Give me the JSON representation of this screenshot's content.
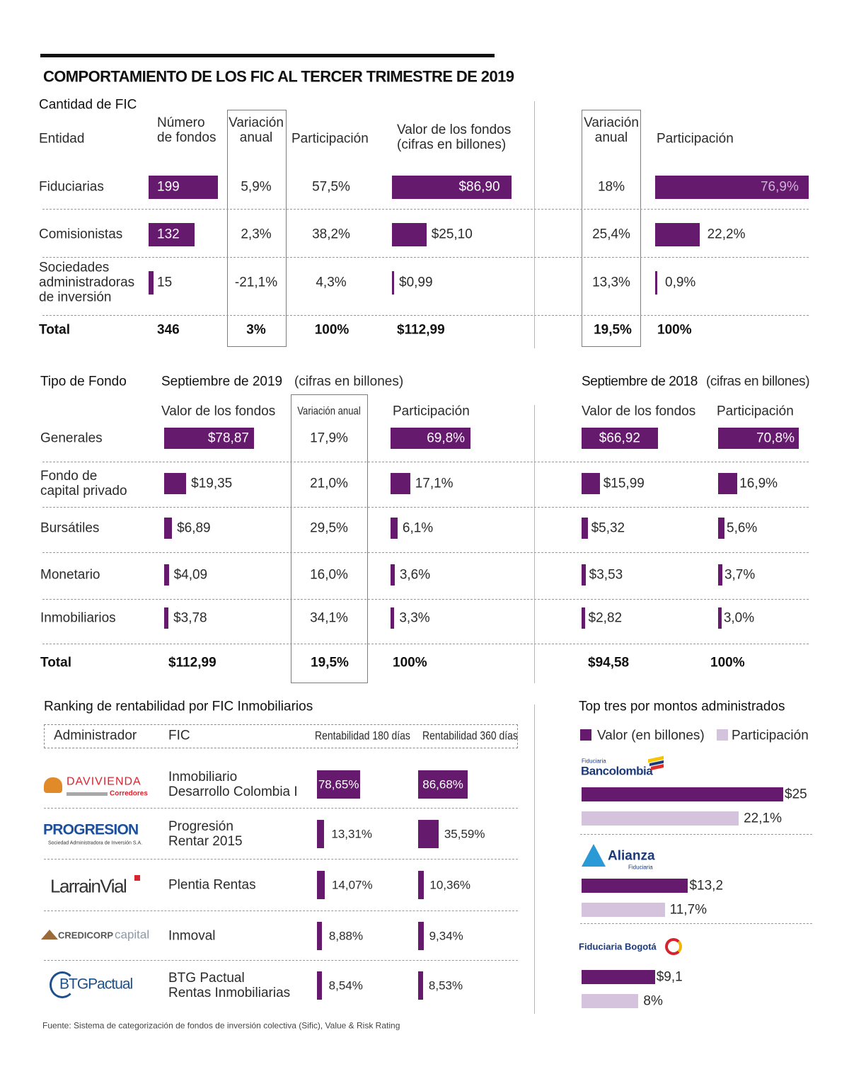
{
  "title": "COMPORTAMIENTO DE LOS FIC AL TERCER TRIMESTRE DE 2019",
  "colors": {
    "primary": "#661a6e",
    "light": "#d5c2dc",
    "text": "#2b2b2b"
  },
  "section1": {
    "subtitle": "Cantidad de FIC",
    "headers": {
      "entidad": "Entidad",
      "numero_fondos": "Número\nde fondos",
      "variacion": "Variación\nanual",
      "participacion": "Participación",
      "valor": "Valor de los fondos\n(cifras en billones)",
      "variacion_right": "Variación\nanual",
      "participacion_right": "Participación"
    },
    "rows": [
      {
        "entidad": "Fiduciarias",
        "num_fondos": 199,
        "num_fondos_label": "199",
        "variacion": "5,9%",
        "participacion": "57,5%",
        "valor": 86.9,
        "valor_label": "$86,90",
        "variacion_right": "18%",
        "participacion_right": 76.9,
        "participacion_right_label": "76,9%"
      },
      {
        "entidad": "Comisionistas",
        "num_fondos": 132,
        "num_fondos_label": "132",
        "variacion": "2,3%",
        "participacion": "38,2%",
        "valor": 25.1,
        "valor_label": "$25,10",
        "variacion_right": "25,4%",
        "participacion_right": 22.2,
        "participacion_right_label": "22,2%"
      },
      {
        "entidad": "Sociedades\nadministradoras\nde inversión",
        "num_fondos": 15,
        "num_fondos_label": "15",
        "variacion": "-21,1%",
        "participacion": "4,3%",
        "valor": 0.99,
        "valor_label": "$0,99",
        "variacion_right": "13,3%",
        "participacion_right": 0.9,
        "participacion_right_label": "0,9%"
      }
    ],
    "total": {
      "label": "Total",
      "num_fondos": "346",
      "variacion": "3%",
      "participacion": "100%",
      "valor": "$112,99",
      "variacion_right": "19,5%",
      "participacion_right": "100%"
    }
  },
  "section2": {
    "title": "Tipo de Fondo",
    "period_2019": "Septiembre de 2019",
    "unit_2019": "(cifras en billones)",
    "period_2018": "Septiembre de 2018",
    "unit_2018": "(cifras en billones)",
    "headers": {
      "valor_2019": "Valor de los fondos",
      "variacion": "Variación anual",
      "participacion_2019": "Participación",
      "valor_2018": "Valor de los fondos",
      "participacion_2018": "Participación"
    },
    "rows": [
      {
        "tipo": "Generales",
        "valor_2019": 78.87,
        "valor_2019_label": "$78,87",
        "variacion": "17,9%",
        "participacion_2019": 69.8,
        "participacion_2019_label": "69,8%",
        "valor_2018": 66.92,
        "valor_2018_label": "$66,92",
        "participacion_2018": 70.8,
        "participacion_2018_label": "70,8%"
      },
      {
        "tipo": "Fondo de\ncapital privado",
        "valor_2019": 19.35,
        "valor_2019_label": "$19,35",
        "variacion": "21,0%",
        "participacion_2019": 17.1,
        "participacion_2019_label": "17,1%",
        "valor_2018": 15.99,
        "valor_2018_label": "$15,99",
        "participacion_2018": 16.9,
        "participacion_2018_label": "16,9%"
      },
      {
        "tipo": "Bursátiles",
        "valor_2019": 6.89,
        "valor_2019_label": "$6,89",
        "variacion": "29,5%",
        "participacion_2019": 6.1,
        "participacion_2019_label": "6,1%",
        "valor_2018": 5.32,
        "valor_2018_label": "$5,32",
        "participacion_2018": 5.6,
        "participacion_2018_label": "5,6%"
      },
      {
        "tipo": "Monetario",
        "valor_2019": 4.09,
        "valor_2019_label": "$4,09",
        "variacion": "16,0%",
        "participacion_2019": 3.6,
        "participacion_2019_label": "3,6%",
        "valor_2018": 3.53,
        "valor_2018_label": "$3,53",
        "participacion_2018": 3.7,
        "participacion_2018_label": "3,7%"
      },
      {
        "tipo": "Inmobiliarios",
        "valor_2019": 3.78,
        "valor_2019_label": "$3,78",
        "variacion": "34,1%",
        "participacion_2019": 3.3,
        "participacion_2019_label": "3,3%",
        "valor_2018": 2.82,
        "valor_2018_label": "$2,82",
        "participacion_2018": 3.0,
        "participacion_2018_label": "3,0%"
      }
    ],
    "total": {
      "label": "Total",
      "valor_2019": "$112,99",
      "variacion": "19,5%",
      "participacion_2019": "100%",
      "valor_2018": "$94,58",
      "participacion_2018": "100%"
    }
  },
  "section3": {
    "title": "Ranking de rentabilidad por FIC Inmobiliarios",
    "headers": {
      "administrador": "Administrador",
      "fic": "FIC",
      "rent_180": "Rentabilidad 180 días",
      "rent_360": "Rentabilidad 360 días"
    },
    "rows": [
      {
        "logo": "davivienda-logo",
        "logo_text": "DAVIVIENDA",
        "logo_sub": "Corredores",
        "fic": "Inmobiliario\nDesarrollo Colombia I",
        "rent_180": 78.65,
        "rent_180_label": "78,65%",
        "rent_360": 86.68,
        "rent_360_label": "86,68%"
      },
      {
        "logo": "progresion-logo",
        "logo_text": "PROGRESION",
        "logo_sub": "Sociedad Administradora de Inversión S.A.",
        "fic": "Progresión\nRentar 2015",
        "rent_180": 13.31,
        "rent_180_label": "13,31%",
        "rent_360": 35.59,
        "rent_360_label": "35,59%"
      },
      {
        "logo": "larrainvial-logo",
        "logo_text": "LarrainVial",
        "logo_sub": "",
        "fic": "Plentia Rentas",
        "rent_180": 14.07,
        "rent_180_label": "14,07%",
        "rent_360": 10.36,
        "rent_360_label": "10,36%"
      },
      {
        "logo": "credicorp-logo",
        "logo_text": "CREDICORP",
        "logo_sub": "capital",
        "fic": "Inmoval",
        "rent_180": 8.88,
        "rent_180_label": "8,88%",
        "rent_360": 9.34,
        "rent_360_label": "9,34%"
      },
      {
        "logo": "btgpactual-logo",
        "logo_text": "BTGPactual",
        "logo_sub": "",
        "fic": "BTG Pactual\nRentas Inmobiliarias",
        "rent_180": 8.54,
        "rent_180_label": "8,54%",
        "rent_360": 8.53,
        "rent_360_label": "8,53%"
      }
    ],
    "source": "Fuente: Sistema de categorización de fondos de inversión colectiva (Sific), Value & Risk Rating"
  },
  "section4": {
    "title": "Top tres por montos administrados",
    "legend": {
      "valor": "Valor (en billones)",
      "participacion": "Participación"
    },
    "items": [
      {
        "logo": "bancolombia-logo",
        "logo_text": "Bancolombia",
        "logo_sub": "Fiduciaria",
        "valor": 25,
        "valor_label": "$25",
        "participacion": 22.1,
        "participacion_label": "22,1%"
      },
      {
        "logo": "alianza-logo",
        "logo_text": "Alianza",
        "logo_sub": "Fiduciaria",
        "valor": 13.2,
        "valor_label": "$13,2",
        "participacion": 11.7,
        "participacion_label": "11,7%"
      },
      {
        "logo": "fiduciaria-bogota-logo",
        "logo_text": "Fiduciaria Bogotá",
        "logo_sub": "",
        "valor": 9.1,
        "valor_label": "$9,1",
        "participacion": 8,
        "participacion_label": "8%"
      }
    ]
  },
  "chart_data": [
    {
      "type": "bar",
      "title": "Cantidad de FIC - Número de fondos",
      "categories": [
        "Fiduciarias",
        "Comisionistas",
        "Sociedades administradoras de inversión"
      ],
      "values": [
        199,
        132,
        15
      ]
    },
    {
      "type": "bar",
      "title": "Valor de los fondos (billones)",
      "categories": [
        "Fiduciarias",
        "Comisionistas",
        "Sociedades administradoras de inversión"
      ],
      "values": [
        86.9,
        25.1,
        0.99
      ]
    },
    {
      "type": "bar",
      "title": "Tipo de Fondo",
      "categories": [
        "Generales",
        "Fondo de capital privado",
        "Bursátiles",
        "Monetario",
        "Inmobiliarios"
      ],
      "series": [
        {
          "name": "Valor 2019",
          "values": [
            78.87,
            19.35,
            6.89,
            4.09,
            3.78
          ]
        },
        {
          "name": "Participación 2019",
          "values": [
            69.8,
            17.1,
            6.1,
            3.6,
            3.3
          ]
        },
        {
          "name": "Valor 2018",
          "values": [
            66.92,
            15.99,
            5.32,
            3.53,
            2.82
          ]
        },
        {
          "name": "Participación 2018",
          "values": [
            70.8,
            16.9,
            5.6,
            3.7,
            3.0
          ]
        }
      ]
    },
    {
      "type": "bar",
      "title": "Ranking de rentabilidad por FIC Inmobiliarios",
      "categories": [
        "Inmobiliario Desarrollo Colombia I",
        "Progresión Rentar 2015",
        "Plentia Rentas",
        "Inmoval",
        "BTG Pactual Rentas Inmobiliarias"
      ],
      "series": [
        {
          "name": "Rentabilidad 180 días",
          "values": [
            78.65,
            13.31,
            14.07,
            8.88,
            8.54
          ]
        },
        {
          "name": "Rentabilidad 360 días",
          "values": [
            86.68,
            35.59,
            10.36,
            9.34,
            8.53
          ]
        }
      ]
    },
    {
      "type": "bar",
      "title": "Top tres por montos administrados",
      "categories": [
        "Bancolombia",
        "Alianza",
        "Fiduciaria Bogotá"
      ],
      "series": [
        {
          "name": "Valor (en billones)",
          "values": [
            25,
            13.2,
            9.1
          ]
        },
        {
          "name": "Participación",
          "values": [
            22.1,
            11.7,
            8
          ]
        }
      ]
    }
  ]
}
